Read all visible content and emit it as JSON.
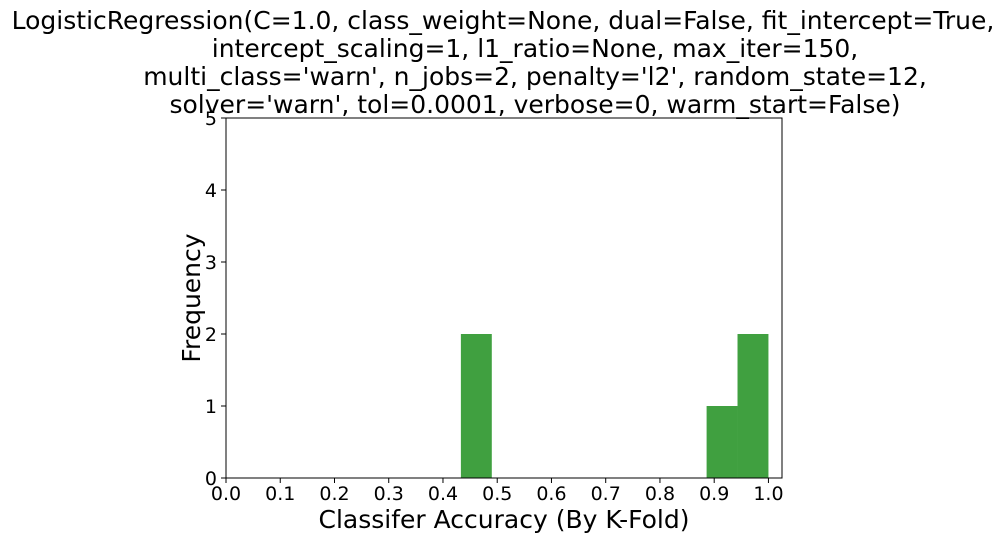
{
  "chart_data": {
    "type": "bar",
    "title": [
      "LogisticRegression(C=1.0, class_weight=None, dual=False, fit_intercept=True,",
      "intercept_scaling=1, l1_ratio=None, max_iter=150,",
      "multi_class='warn', n_jobs=2, penalty='l2', random_state=12,",
      "solver='warn', tol=0.0001, verbose=0, warm_start=False)"
    ],
    "xlabel": "Classifer Accuracy (By K-Fold)",
    "ylabel": "Frequency",
    "xlim": [
      0.0,
      1.025
    ],
    "ylim": [
      0,
      5
    ],
    "x_ticks": [
      "0.0",
      "0.1",
      "0.2",
      "0.3",
      "0.4",
      "0.5",
      "0.6",
      "0.7",
      "0.8",
      "0.9",
      "1.0"
    ],
    "y_ticks": [
      "0",
      "1",
      "2",
      "3",
      "4",
      "5"
    ],
    "grid": false,
    "bar_color": "#40a040",
    "bins": [
      {
        "x0": 0.433,
        "x1": 0.49,
        "count": 2
      },
      {
        "x0": 0.886,
        "x1": 0.943,
        "count": 1
      },
      {
        "x0": 0.943,
        "x1": 1.0,
        "count": 2
      }
    ]
  }
}
